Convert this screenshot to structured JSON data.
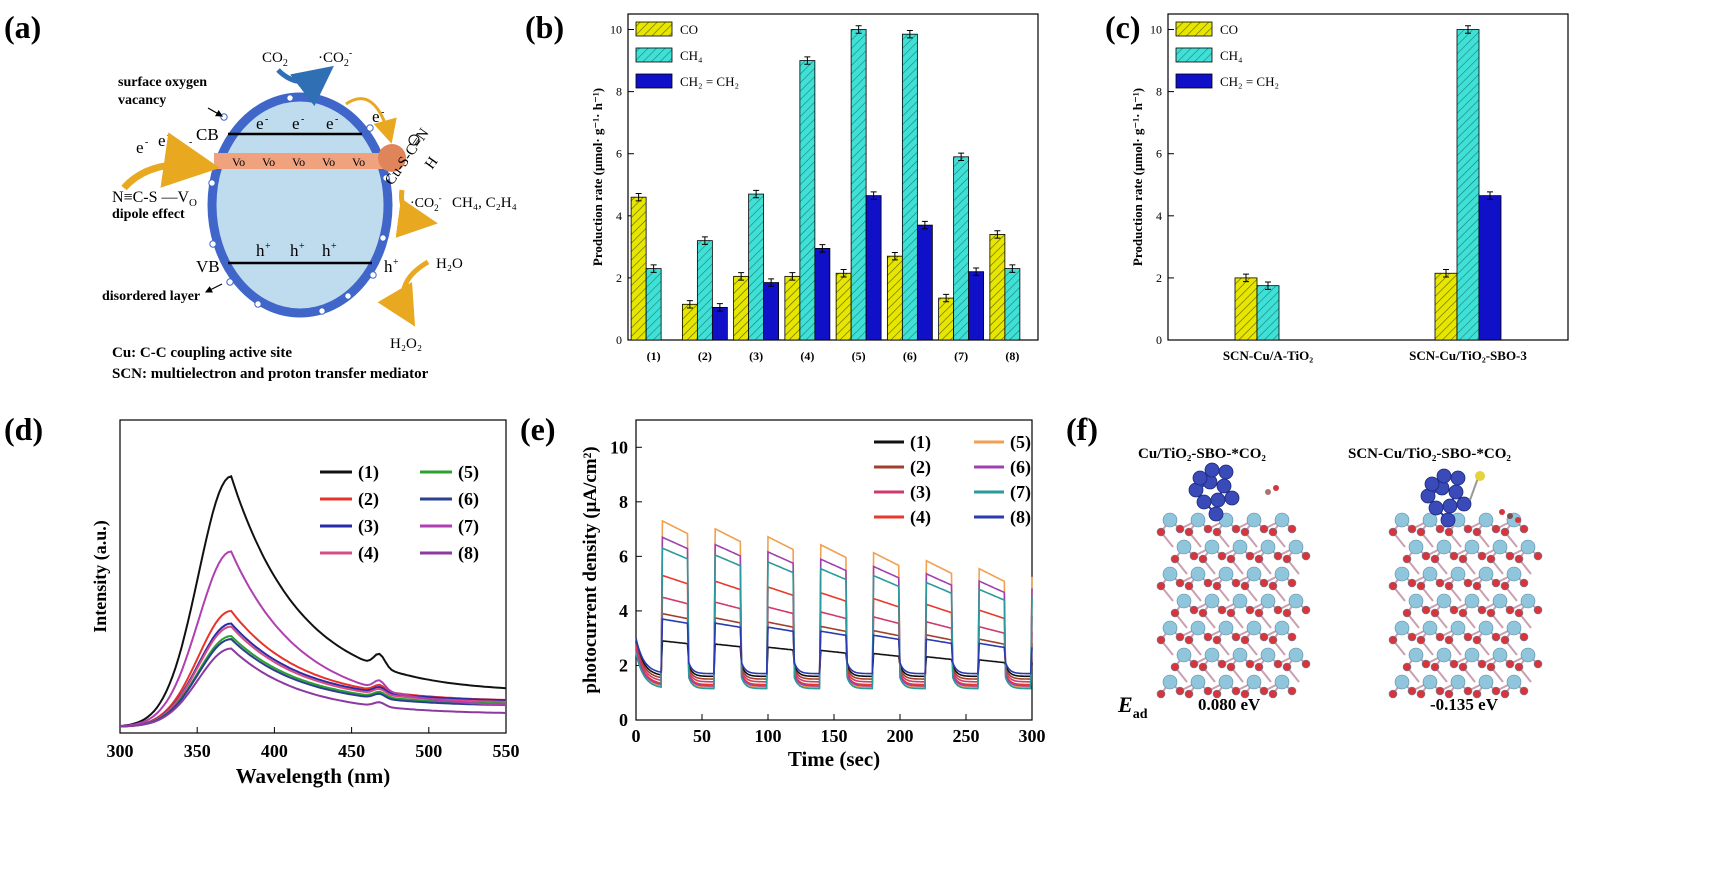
{
  "panel_labels": [
    "(a)",
    "(b)",
    "(c)",
    "(d)",
    "(e)",
    "(f)"
  ],
  "schematic": {
    "co2": "CO",
    "co2_sub": "2",
    "co2_rad": "CO",
    "co2_rad_sub": "2",
    "co2_rad_sup": "-",
    "surface_vacancy_1": "surface oxygen",
    "surface_vacancy_2": "vacancy",
    "cb": "CB",
    "vb": "VB",
    "electron": "e",
    "hole": "h",
    "vo": "Vo",
    "cu_scn": "Cu-S-C≡N",
    "h_label": "H",
    "products": "CH₄, C₂H₄",
    "co2_star": "CO",
    "ncs": "N≡C-S",
    "vo_label": "V",
    "vo_sub": "O",
    "dipole": "dipole effect",
    "disordered": "disordered layer",
    "h2o": "H₂O",
    "h2o2": "H₂O₂",
    "cu_line": "Cu:  C-C coupling active site",
    "scn_line": "SCN: multielectron and proton transfer mediator",
    "colors": {
      "shell": "#3f66c8",
      "core": "#bfdcef",
      "band": "#f0a27f",
      "arrow": "#e8a81f",
      "co2arrow": "#2f6fb3",
      "cu": "#e0845a"
    }
  },
  "chart_data": [
    {
      "id": "b",
      "type": "bar",
      "ylabel": "Production rate (μmol· g⁻¹· h⁻¹)",
      "categories": [
        "(1)",
        "(2)",
        "(3)",
        "(4)",
        "(5)",
        "(6)",
        "(7)",
        "(8)"
      ],
      "ylim": [
        0,
        10.5
      ],
      "yticks": [
        0,
        2,
        4,
        6,
        8,
        10
      ],
      "series": [
        {
          "name": "CO",
          "color": "#e6e600",
          "values": [
            4.6,
            1.15,
            2.05,
            2.05,
            2.15,
            2.7,
            1.35,
            3.4
          ]
        },
        {
          "name": "CH₄",
          "color": "#3fe0d6",
          "values": [
            2.3,
            3.2,
            4.7,
            9.0,
            10.0,
            9.85,
            5.9,
            2.3
          ]
        },
        {
          "name": "CH₂ = CH₂",
          "color": "#1010c8",
          "values": [
            null,
            1.05,
            1.85,
            2.95,
            4.65,
            3.7,
            2.2,
            null
          ]
        }
      ]
    },
    {
      "id": "c",
      "type": "bar",
      "ylabel": "Production rate (μmol· g⁻¹· h⁻¹)",
      "categories": [
        "SCN-Cu/A-TiO₂",
        "SCN-Cu/TiO₂-SBO-3"
      ],
      "ylim": [
        0,
        10.5
      ],
      "yticks": [
        0,
        2,
        4,
        6,
        8,
        10
      ],
      "series": [
        {
          "name": "CO",
          "color": "#e6e600",
          "values": [
            2.0,
            2.15
          ]
        },
        {
          "name": "CH₄",
          "color": "#3fe0d6",
          "values": [
            1.75,
            10.0
          ]
        },
        {
          "name": "CH₂ = CH₂",
          "color": "#1010c8",
          "values": [
            null,
            4.65
          ]
        }
      ]
    },
    {
      "id": "d",
      "type": "line",
      "xlabel": "Wavelength (nm)",
      "ylabel": "Intensity (a.u.)",
      "xlim": [
        300,
        550
      ],
      "xticks": [
        300,
        350,
        400,
        450,
        500,
        550
      ],
      "ylim": [
        0,
        1
      ],
      "series": [
        {
          "name": "(1)",
          "color": "#111111",
          "peak": 0.82,
          "tail": 0.13
        },
        {
          "name": "(2)",
          "color": "#e8332b",
          "peak": 0.39,
          "tail": 0.1
        },
        {
          "name": "(3)",
          "color": "#2b2ba8",
          "peak": 0.35,
          "tail": 0.1
        },
        {
          "name": "(4)",
          "color": "#d64c87",
          "peak": 0.34,
          "tail": 0.095
        },
        {
          "name": "(5)",
          "color": "#2ca02c",
          "peak": 0.31,
          "tail": 0.09
        },
        {
          "name": "(6)",
          "color": "#2a3f8f",
          "peak": 0.3,
          "tail": 0.085
        },
        {
          "name": "(7)",
          "color": "#b040b0",
          "peak": 0.58,
          "tail": 0.08
        },
        {
          "name": "(8)",
          "color": "#8b3aa0",
          "peak": 0.27,
          "tail": 0.06
        }
      ]
    },
    {
      "id": "e",
      "type": "line",
      "xlabel": "Time (sec)",
      "ylabel": "photocurrent density (μA/cm²)",
      "xlim": [
        0,
        300
      ],
      "xticks": [
        0,
        50,
        100,
        150,
        200,
        250,
        300
      ],
      "ylim": [
        0,
        11
      ],
      "yticks": [
        0,
        2,
        4,
        6,
        8,
        10
      ],
      "series": [
        {
          "name": "(1)",
          "color": "#111111",
          "on": 2.9,
          "off": 1.6
        },
        {
          "name": "(2)",
          "color": "#a0402a",
          "on": 3.9,
          "off": 1.5
        },
        {
          "name": "(3)",
          "color": "#d03a6a",
          "on": 4.5,
          "off": 1.4
        },
        {
          "name": "(4)",
          "color": "#e83a2a",
          "on": 5.3,
          "off": 1.3
        },
        {
          "name": "(5)",
          "color": "#f0a050",
          "on": 7.3,
          "off": 1.2
        },
        {
          "name": "(6)",
          "color": "#a040b0",
          "on": 6.7,
          "off": 1.25
        },
        {
          "name": "(7)",
          "color": "#2a9a9a",
          "on": 6.3,
          "off": 1.15
        },
        {
          "name": "(8)",
          "color": "#2a3ab0",
          "on": 3.7,
          "off": 1.7
        }
      ]
    }
  ],
  "structures": {
    "left_title": "Cu/TiO₂-SBO-*CO₂",
    "right_title": "SCN-Cu/TiO₂-SBO-*CO₂",
    "ead_main": "E",
    "ead_sub": "ad",
    "left_value": "0.080 eV",
    "right_value": "-0.135 eV"
  }
}
